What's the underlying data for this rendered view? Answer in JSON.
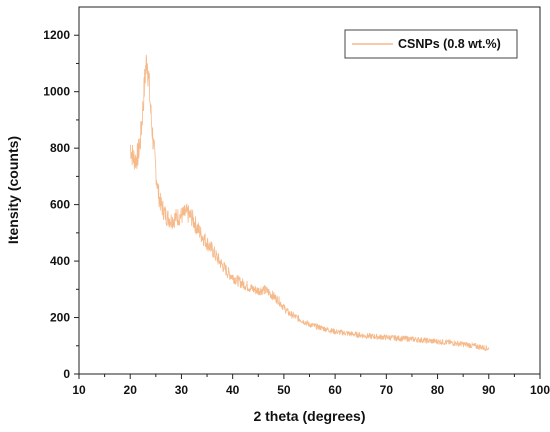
{
  "chart_data": {
    "type": "line",
    "xlabel": "2 theta (degrees)",
    "ylabel": "Itensity (counts)",
    "xlim": [
      10,
      100
    ],
    "ylim": [
      0,
      1300
    ],
    "x_ticks": [
      10,
      20,
      30,
      40,
      50,
      60,
      70,
      80,
      90,
      100
    ],
    "y_ticks": [
      0,
      200,
      400,
      600,
      800,
      1000,
      1200
    ],
    "grid": false,
    "legend_position": "top-right",
    "series": [
      {
        "name": "CSNPs (0.8 wt.%)",
        "color": "#f5b98a",
        "x": [
          20,
          20.5,
          21,
          21.5,
          22,
          22.5,
          23,
          23.3,
          23.6,
          24,
          24.5,
          25,
          25.5,
          26,
          27,
          28,
          29,
          30,
          31,
          32,
          33,
          34,
          35,
          36,
          37,
          38,
          39,
          40,
          41,
          42,
          43,
          44,
          45,
          46,
          47,
          48,
          49,
          50,
          51,
          52,
          53,
          54,
          55,
          56,
          57,
          58,
          59,
          60,
          62,
          64,
          66,
          68,
          70,
          72,
          74,
          76,
          78,
          80,
          82,
          84,
          86,
          88,
          90
        ],
        "y": [
          810,
          770,
          760,
          775,
          830,
          950,
          1080,
          1120,
          1050,
          930,
          820,
          720,
          640,
          600,
          560,
          545,
          555,
          560,
          570,
          555,
          520,
          490,
          465,
          440,
          410,
          385,
          360,
          345,
          330,
          320,
          310,
          300,
          295,
          300,
          290,
          275,
          260,
          235,
          215,
          205,
          195,
          185,
          175,
          170,
          165,
          160,
          155,
          150,
          145,
          140,
          135,
          132,
          130,
          127,
          125,
          122,
          118,
          115,
          112,
          108,
          103,
          97,
          90
        ]
      }
    ]
  }
}
